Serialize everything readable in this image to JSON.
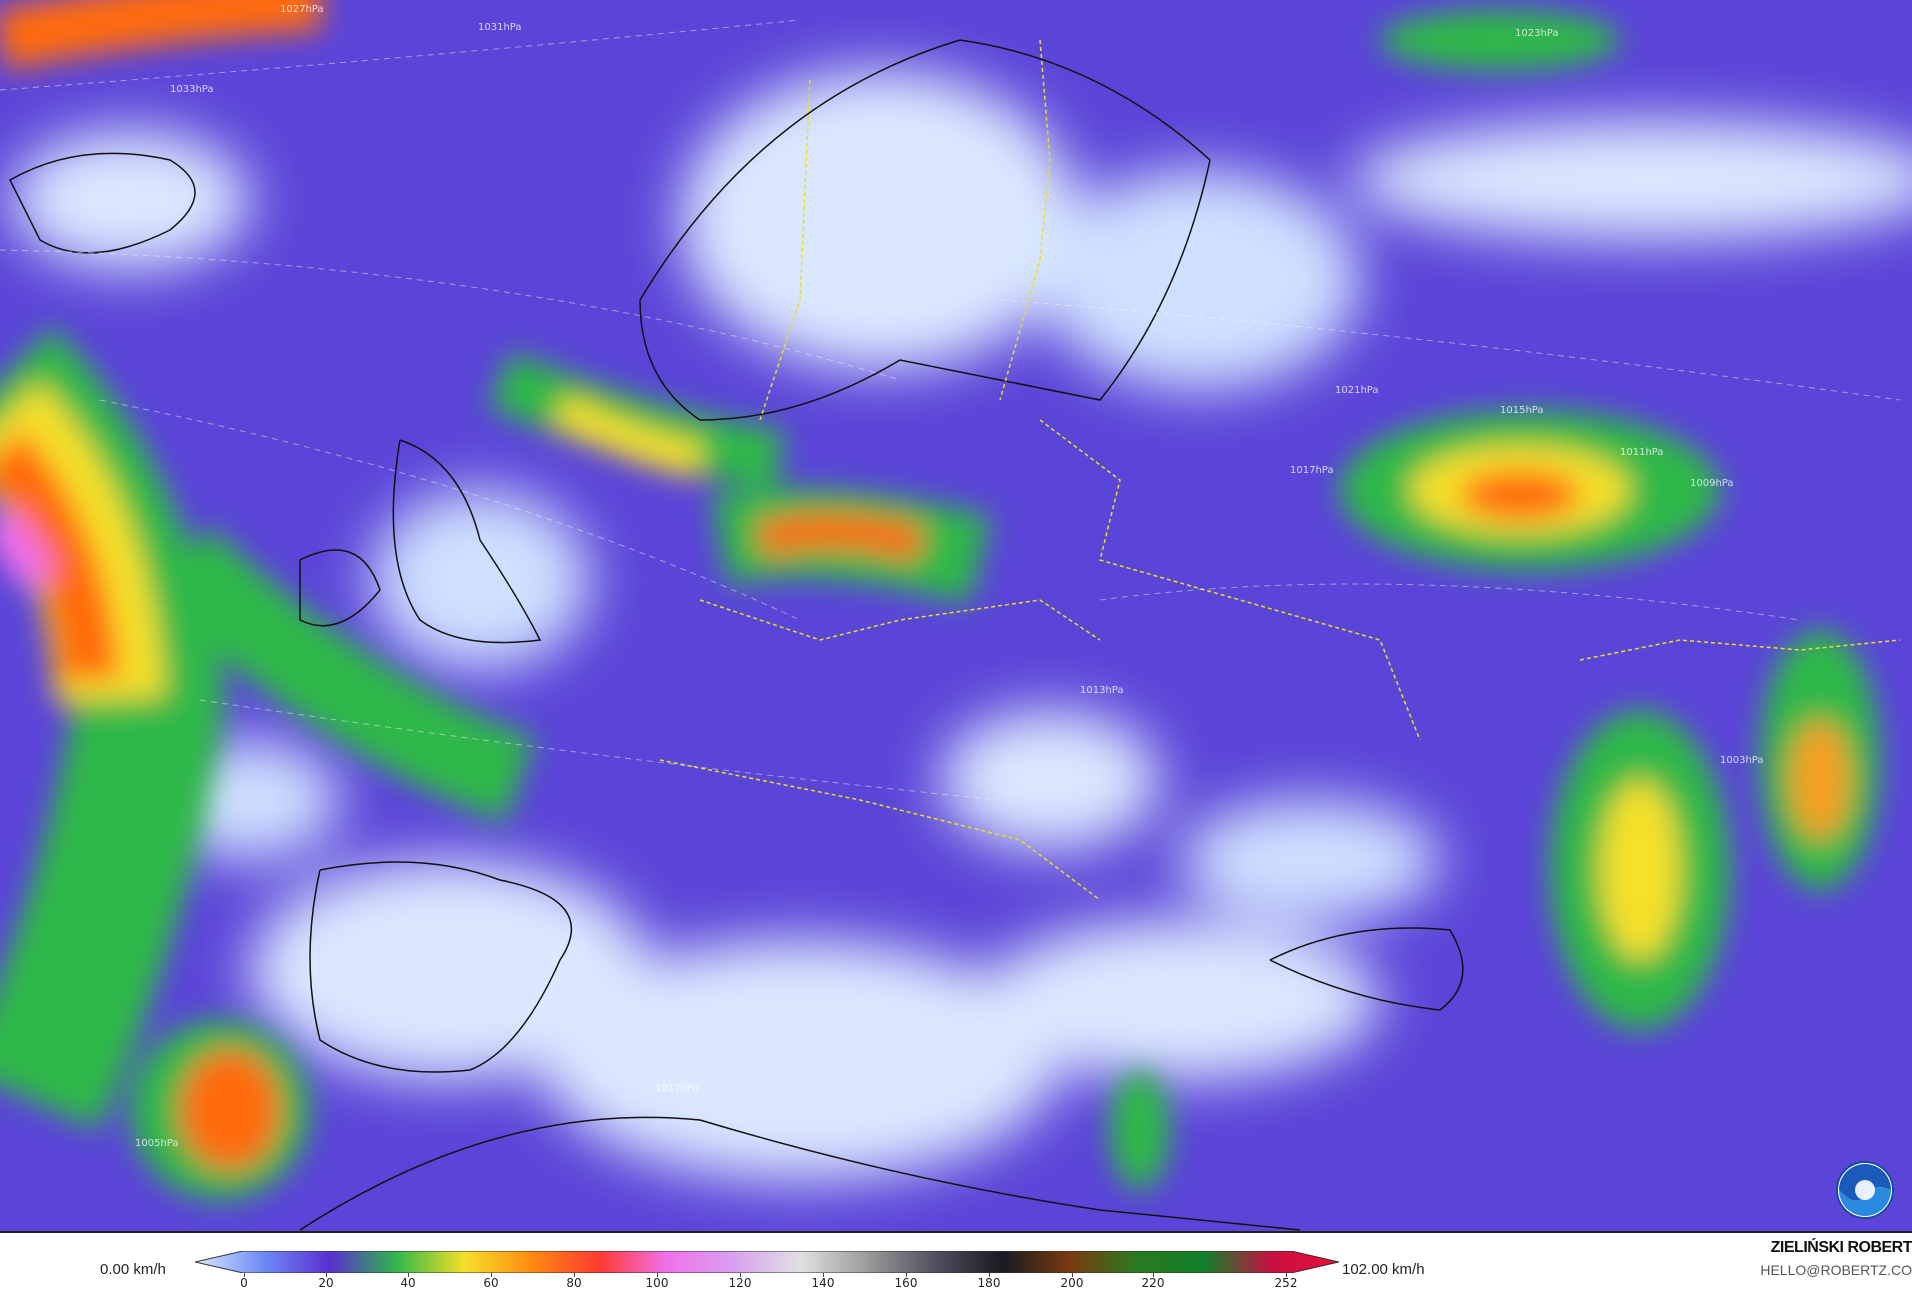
{
  "map": {
    "pressure_labels": [
      "1033hPa",
      "1031hPa",
      "1027hPa",
      "1023hPa",
      "1021hPa",
      "1017hPa",
      "1015hPa",
      "1011hPa",
      "1009hPa",
      "1013hPa",
      "1005hPa",
      "1003hPa",
      "1017hPa"
    ],
    "colors": {
      "background": "#5b45d8",
      "calm": "#dbe8ff",
      "moderate": "#2fb84a",
      "strong": "#f5e02a",
      "very_strong": "#ff6a10"
    }
  },
  "legend": {
    "min_label": "0.00 km/h",
    "max_label": "102.00 km/h",
    "ticks": [
      "0",
      "20",
      "40",
      "60",
      "80",
      "100",
      "120",
      "140",
      "160",
      "180",
      "200",
      "220",
      "252"
    ],
    "stops": [
      "#dbe8ff",
      "#6e8cf5",
      "#5a2fd0",
      "#2fb84a",
      "#f5e02a",
      "#ff8a10",
      "#ff3a30",
      "#f070e8",
      "#d8a0f0",
      "#e0e0e0",
      "#9a9a9a",
      "#505060",
      "#1a1a22",
      "#7a3a10",
      "#2a7a20",
      "#10802a",
      "#c81040",
      "#e8103a"
    ]
  },
  "credits": {
    "author": "ZIELIŃSKI ROBERT",
    "email": "HELLO@ROBERTZ.CO",
    "logo_text": "NOAA"
  }
}
